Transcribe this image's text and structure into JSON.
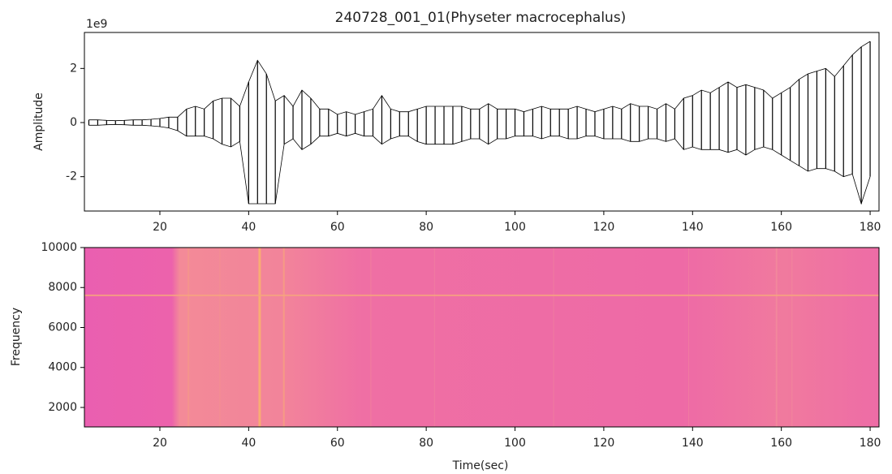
{
  "chart_data": [
    {
      "type": "line",
      "title": "240728_001_01(Physeter macrocephalus)",
      "ylabel": "Amplitude",
      "y_offset_label": "1e9",
      "x": [
        4,
        6,
        8,
        10,
        12,
        14,
        16,
        18,
        20,
        22,
        24,
        26,
        28,
        30,
        32,
        34,
        36,
        38,
        40,
        42,
        44,
        46,
        48,
        50,
        52,
        54,
        56,
        58,
        60,
        62,
        64,
        66,
        68,
        70,
        72,
        74,
        76,
        78,
        80,
        82,
        84,
        86,
        88,
        90,
        92,
        94,
        96,
        98,
        100,
        102,
        104,
        106,
        108,
        110,
        112,
        114,
        116,
        118,
        120,
        122,
        124,
        126,
        128,
        130,
        132,
        134,
        136,
        138,
        140,
        142,
        144,
        146,
        148,
        150,
        152,
        154,
        156,
        158,
        160,
        162,
        164,
        166,
        168,
        170,
        172,
        174,
        176,
        178,
        180
      ],
      "series": [
        {
          "color": "#000000",
          "values": [
            0.1,
            0.1,
            0.08,
            0.07,
            0.08,
            0.1,
            0.1,
            0.12,
            0.15,
            0.2,
            0.2,
            0.5,
            0.6,
            0.5,
            0.8,
            0.9,
            0.9,
            0.6,
            1.5,
            2.3,
            1.8,
            0.8,
            1.0,
            0.6,
            1.2,
            0.9,
            0.5,
            0.5,
            0.3,
            0.4,
            0.3,
            0.4,
            0.5,
            1.0,
            0.5,
            0.4,
            0.4,
            0.5,
            0.6,
            0.6,
            0.6,
            0.6,
            0.6,
            0.5,
            0.5,
            0.7,
            0.5,
            0.5,
            0.5,
            0.4,
            0.5,
            0.6,
            0.5,
            0.5,
            0.5,
            0.6,
            0.5,
            0.4,
            0.5,
            0.6,
            0.5,
            0.7,
            0.6,
            0.6,
            0.5,
            0.7,
            0.5,
            0.9,
            1.0,
            1.2,
            1.1,
            1.3,
            1.5,
            1.3,
            1.4,
            1.3,
            1.2,
            0.9,
            1.1,
            1.3,
            1.6,
            1.8,
            1.9,
            2.0,
            1.7,
            2.1,
            2.5,
            2.8,
            3.0
          ]
        },
        {
          "color": "#000000",
          "values": [
            -0.1,
            -0.1,
            -0.08,
            -0.07,
            -0.08,
            -0.1,
            -0.1,
            -0.12,
            -0.15,
            -0.2,
            -0.3,
            -0.5,
            -0.5,
            -0.5,
            -0.6,
            -0.8,
            -0.9,
            -0.7,
            -3.0,
            -3.0,
            -3.0,
            -3.0,
            -0.8,
            -0.6,
            -1.0,
            -0.8,
            -0.5,
            -0.5,
            -0.4,
            -0.5,
            -0.4,
            -0.5,
            -0.5,
            -0.8,
            -0.6,
            -0.5,
            -0.5,
            -0.7,
            -0.8,
            -0.8,
            -0.8,
            -0.8,
            -0.7,
            -0.6,
            -0.6,
            -0.8,
            -0.6,
            -0.6,
            -0.5,
            -0.5,
            -0.5,
            -0.6,
            -0.5,
            -0.5,
            -0.6,
            -0.6,
            -0.5,
            -0.5,
            -0.6,
            -0.6,
            -0.6,
            -0.7,
            -0.7,
            -0.6,
            -0.6,
            -0.7,
            -0.6,
            -1.0,
            -0.9,
            -1.0,
            -1.0,
            -1.0,
            -1.1,
            -1.0,
            -1.2,
            -1.0,
            -0.9,
            -1.0,
            -1.2,
            -1.4,
            -1.6,
            -1.8,
            -1.7,
            -1.7,
            -1.8,
            -2.0,
            -1.9,
            -3.0,
            -2.0
          ]
        }
      ],
      "xlim": [
        3,
        182
      ],
      "ylim": [
        -3.27,
        3.33
      ],
      "xticks": [
        20,
        40,
        60,
        80,
        100,
        120,
        140,
        160,
        180
      ],
      "yticks": [
        -2,
        0,
        2
      ]
    },
    {
      "type": "heatmap",
      "xlabel": "Time(sec)",
      "ylabel": "Frequency",
      "xlim": [
        3,
        182
      ],
      "ylim": [
        1025,
        10000
      ],
      "xticks": [
        20,
        40,
        60,
        80,
        100,
        120,
        140,
        160,
        180
      ],
      "yticks": [
        2000,
        4000,
        6000,
        8000,
        10000
      ]
    }
  ]
}
